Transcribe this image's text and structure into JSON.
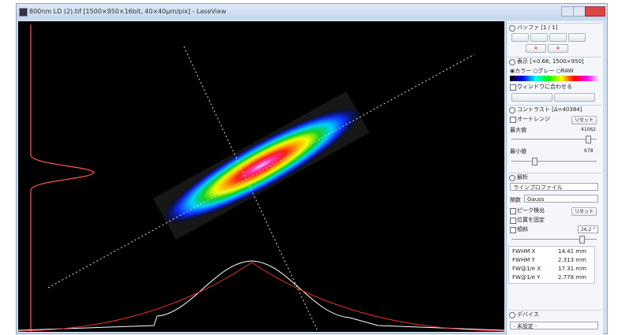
{
  "window": {
    "title": "800nm LD (2).tif [1500×950×16bit, 40×40µm/pix] - LaseView"
  },
  "panel": {
    "buffer": {
      "header": "バッファ [1 / 1]"
    },
    "display": {
      "header": "表示 [×0.66, 1500×950]",
      "modes": [
        "カラー",
        "グレー",
        "RAW"
      ],
      "fit": "ウィンドウに合わせる"
    },
    "contrast": {
      "header": "コントラスト [Δ=40384]",
      "auto_range": "オートレンジ",
      "reset": "リセット",
      "max_label": "最大値",
      "max_value": "41062",
      "min_label": "最小値",
      "min_value": "678"
    },
    "analysis": {
      "header": "解析",
      "mode": "ラインプロファイル",
      "function_label": "関数",
      "function": "Gauss",
      "peak": "ピーク検出",
      "reset": "リセット",
      "fix_position": "位置を固定",
      "tilt": "傾斜",
      "tilt_value": "26.2 °",
      "results": [
        [
          "FWHM X",
          "14.41 mm"
        ],
        [
          "FWHM Y",
          "2.313 mm"
        ],
        [
          "FW@1/e X",
          "17.31 mm"
        ],
        [
          "FW@1/e Y",
          "2.778 mm"
        ]
      ]
    },
    "device": {
      "header": "デバイス",
      "selection": "- 未設定 -"
    }
  }
}
